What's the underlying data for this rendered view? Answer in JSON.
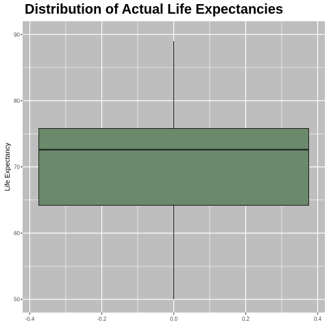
{
  "chart_data": {
    "type": "box",
    "title": "Distribution of Actual Life Expectancies",
    "xlabel": "",
    "ylabel": "Life Expectancy",
    "xlim": [
      -0.4,
      0.4
    ],
    "ylim": [
      50,
      90
    ],
    "x_ticks": [
      -0.4,
      -0.2,
      0.0,
      0.2,
      0.4
    ],
    "x_tick_labels": [
      "-0.4",
      "-0.2",
      "0.0",
      "0.2",
      "0.4"
    ],
    "y_ticks": [
      50,
      60,
      70,
      80,
      90
    ],
    "y_tick_labels": [
      "50",
      "60",
      "70",
      "80",
      "90"
    ],
    "grid": true,
    "box": {
      "center": 0.0,
      "width": 0.75,
      "min": 50.0,
      "q1": 64.2,
      "median": 72.6,
      "q3": 75.8,
      "max": 89.0
    },
    "colors": {
      "panel": "#bebebe",
      "grid": "#ffffff",
      "box_fill": "#6b8a6b",
      "box_stroke": "#1a1a1a"
    }
  }
}
